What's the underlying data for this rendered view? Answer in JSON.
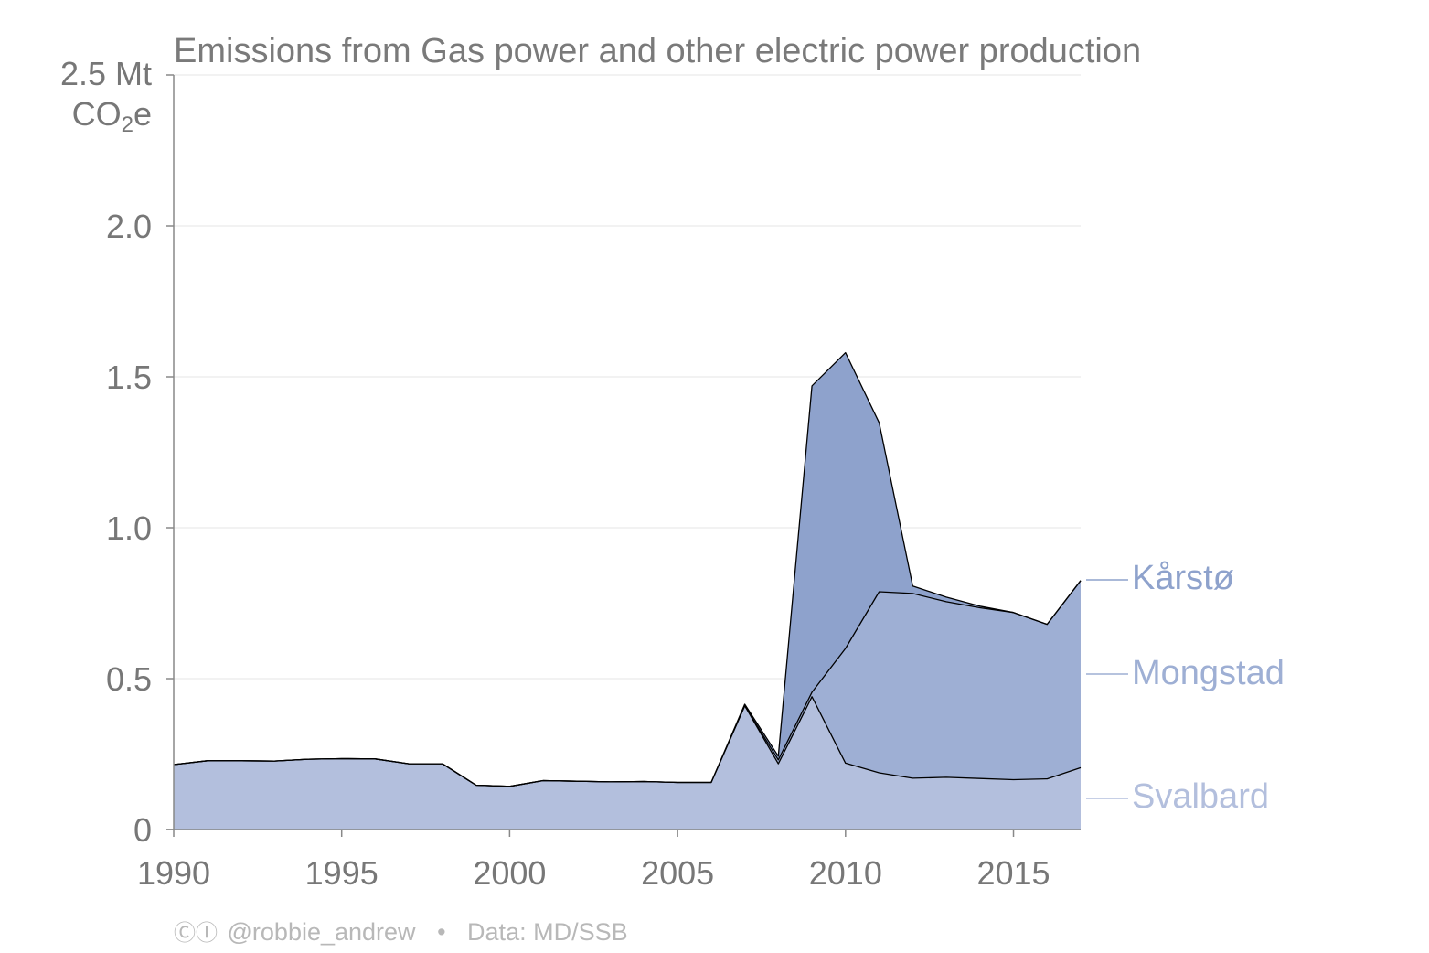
{
  "chart_data": {
    "type": "area",
    "stacked": true,
    "title": "Emissions from Gas power and other electric power production",
    "ylabel_line1": "2.5 Mt",
    "ylabel_line2_main": "CO",
    "ylabel_line2_sub": "2",
    "ylabel_line2_end": "e",
    "xlim": [
      1990,
      2017
    ],
    "ylim": [
      0,
      2.5
    ],
    "xticks": [
      {
        "value": 1990,
        "label": "1990"
      },
      {
        "value": 1995,
        "label": "1995"
      },
      {
        "value": 2000,
        "label": "2000"
      },
      {
        "value": 2005,
        "label": "2005"
      },
      {
        "value": 2010,
        "label": "2010"
      },
      {
        "value": 2015,
        "label": "2015"
      }
    ],
    "yticks": [
      {
        "value": 0,
        "label": "0"
      },
      {
        "value": 0.5,
        "label": "0.5"
      },
      {
        "value": 1.0,
        "label": "1.0"
      },
      {
        "value": 1.5,
        "label": "1.5"
      },
      {
        "value": 2.0,
        "label": "2.0"
      }
    ],
    "grid": true,
    "legend_position": "right, direct labels",
    "x": [
      1990,
      1991,
      1992,
      1993,
      1994,
      1995,
      1996,
      1997,
      1998,
      1999,
      2000,
      2001,
      2002,
      2003,
      2004,
      2005,
      2006,
      2007,
      2008,
      2009,
      2010,
      2011,
      2012,
      2013,
      2014,
      2015,
      2016,
      2017
    ],
    "series": [
      {
        "name": "Svalbard",
        "color": "#b3bfdd",
        "values": [
          0.215,
          0.228,
          0.228,
          0.227,
          0.233,
          0.235,
          0.234,
          0.218,
          0.218,
          0.147,
          0.143,
          0.162,
          0.16,
          0.158,
          0.159,
          0.156,
          0.156,
          0.41,
          0.218,
          0.44,
          0.22,
          0.188,
          0.17,
          0.173,
          0.169,
          0.165,
          0.168,
          0.205
        ]
      },
      {
        "name": "Mongstad",
        "color": "#9eafd4",
        "values": [
          0,
          0,
          0,
          0,
          0,
          0,
          0,
          0,
          0,
          0,
          0,
          0,
          0,
          0,
          0,
          0,
          0,
          0,
          0.013,
          0.015,
          0.38,
          0.6,
          0.612,
          0.582,
          0.566,
          0.554,
          0.512,
          0.62
        ]
      },
      {
        "name": "Kårstø",
        "color": "#8ea2cc",
        "values": [
          0,
          0,
          0,
          0,
          0,
          0,
          0,
          0.0,
          0,
          0,
          0,
          0,
          0,
          0,
          0,
          0,
          0,
          0.005,
          0.012,
          1.015,
          0.98,
          0.56,
          0.025,
          0.015,
          0.005,
          0,
          0,
          0
        ]
      }
    ]
  },
  "footer": {
    "cc_symbols": "ⒸⒾ",
    "author": "@robbie_andrew",
    "separator": "•",
    "source": "Data: MD/SSB"
  }
}
